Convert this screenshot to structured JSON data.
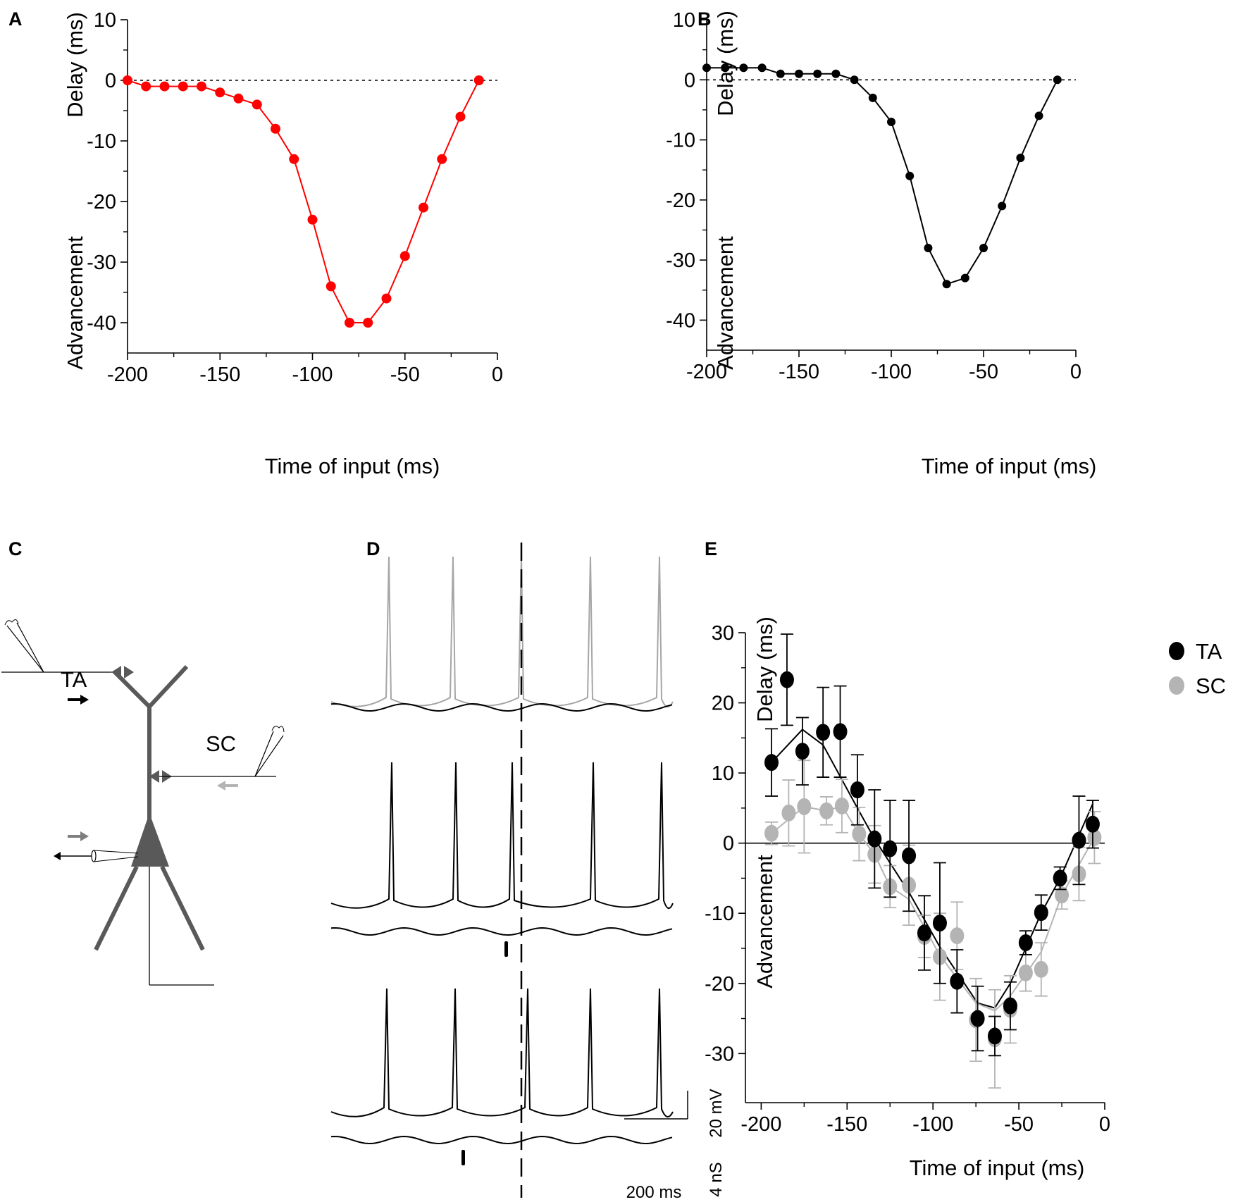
{
  "panel_labels": {
    "a": "A",
    "b": "B",
    "c": "C",
    "d": "D",
    "e": "E"
  },
  "diagram": {
    "ta_label": "TA",
    "sc_label": "SC",
    "colors": {
      "ta_arrow": "#000000",
      "sc_arrow": "#b4b4b4",
      "neuron": "#595959"
    }
  },
  "traces": {
    "scale_voltage": "20 mV",
    "scale_conductance": "4 nS",
    "scale_time": "200 ms",
    "colors": {
      "control": "#a6a6a6",
      "stimulated": "#000000"
    }
  },
  "chart_data": [
    {
      "id": "A",
      "type": "line",
      "title": "",
      "xlabel": "Time of input (ms)",
      "ylabel_top": "Delay (ms)",
      "ylabel_bottom": "Advancement",
      "xlim": [
        -200,
        0
      ],
      "ylim": [
        -45,
        10
      ],
      "xticks": [
        -200,
        -150,
        -100,
        -50,
        0
      ],
      "yticks": [
        10,
        0,
        -10,
        -20,
        -30,
        -40
      ],
      "xtick_labels": [
        "-200",
        "-150",
        "-100",
        "-50",
        "0"
      ],
      "ytick_labels": [
        "10",
        "0",
        "-10",
        "-20",
        "-30",
        "-40"
      ],
      "reference_line": 0,
      "series": [
        {
          "name": "Delay",
          "color": "#ff0000",
          "x": [
            -200,
            -190,
            -180,
            -170,
            -160,
            -150,
            -140,
            -130,
            -120,
            -110,
            -100,
            -90,
            -80,
            -70,
            -60,
            -50,
            -40,
            -30,
            -20,
            -10
          ],
          "y": [
            0,
            -1,
            -1,
            -1,
            -1,
            -2,
            -3,
            -4,
            -8,
            -13,
            -23,
            -34,
            -40,
            -40,
            -36,
            -29,
            -21,
            -13,
            -6,
            0
          ]
        }
      ]
    },
    {
      "id": "B",
      "type": "line",
      "title": "",
      "xlabel": "Time of input (ms)",
      "ylabel_top": "Delay (ms)",
      "ylabel_bottom": "Advancement",
      "xlim": [
        -200,
        0
      ],
      "ylim": [
        -45,
        10
      ],
      "xticks": [
        -200,
        -150,
        -100,
        -50,
        0
      ],
      "yticks": [
        10,
        0,
        -10,
        -20,
        -30,
        -40
      ],
      "xtick_labels": [
        "-200",
        "-150",
        "-100",
        "-50",
        "0"
      ],
      "ytick_labels": [
        "10",
        "0",
        "-10",
        "-20",
        "-30",
        "-40"
      ],
      "reference_line": 0,
      "series": [
        {
          "name": "Delay",
          "color": "#000000",
          "x": [
            -200,
            -190,
            -180,
            -170,
            -160,
            -150,
            -140,
            -130,
            -120,
            -110,
            -100,
            -90,
            -80,
            -70,
            -60,
            -50,
            -40,
            -30,
            -20,
            -10
          ],
          "y": [
            2,
            2,
            2,
            2,
            1,
            1,
            1,
            1,
            0,
            -3,
            -7,
            -16,
            -28,
            -34,
            -33,
            -28,
            -21,
            -13,
            -6,
            0
          ]
        }
      ]
    },
    {
      "id": "E",
      "type": "scatter",
      "title": "",
      "xlabel": "Time of input (ms)",
      "ylabel_top": "Delay (ms)",
      "ylabel_bottom": "Advancement",
      "xlim": [
        -210,
        0
      ],
      "ylim": [
        -37,
        30
      ],
      "xticks": [
        -200,
        -150,
        -100,
        -50,
        0
      ],
      "yticks": [
        30,
        20,
        10,
        0,
        -10,
        -20,
        -30
      ],
      "xtick_labels": [
        "-200",
        "-150",
        "-100",
        "-50",
        "0"
      ],
      "ytick_labels": [
        "30",
        "20",
        "10",
        "0",
        "-10",
        "-20",
        "-30"
      ],
      "reference_line": 0,
      "legend": "top-right",
      "series": [
        {
          "name": "TA",
          "color": "#000000",
          "x": [
            -194,
            -185,
            -176,
            -164,
            -154,
            -144,
            -134,
            -125,
            -114,
            -105,
            -96,
            -86,
            -74,
            -64,
            -55,
            -46,
            -37,
            -26,
            -15,
            -7
          ],
          "y": [
            11.5,
            23.3,
            13.1,
            15.8,
            15.9,
            7.6,
            0.6,
            -0.8,
            -1.8,
            -12.8,
            -11.4,
            -19.7,
            -25.0,
            -27.5,
            -23.2,
            -14.2,
            -9.9,
            -5.0,
            0.4,
            2.7
          ],
          "err": [
            4.8,
            6.5,
            4.8,
            6.4,
            6.5,
            5.0,
            7.0,
            6.9,
            7.9,
            5.3,
            8.6,
            4.5,
            4.6,
            2.8,
            3.4,
            1.7,
            2.5,
            1.6,
            6.3,
            3.4
          ],
          "fit_x": [
            -194,
            -176,
            -164,
            -144,
            -134,
            -114,
            -96,
            -74,
            -64,
            -55,
            -37,
            -26,
            -7
          ],
          "fit_y": [
            11.5,
            16.2,
            14.0,
            5.0,
            0.6,
            -7.0,
            -14.8,
            -22.8,
            -23.5,
            -20.0,
            -10.0,
            -5.0,
            5.6
          ]
        },
        {
          "name": "SC",
          "color": "#b4b4b4",
          "x": [
            -194,
            -184,
            -175,
            -162,
            -153,
            -143,
            -134,
            -125,
            -114,
            -105,
            -96,
            -86,
            -75,
            -64,
            -55,
            -46,
            -37,
            -25,
            -15,
            -6
          ],
          "y": [
            1.4,
            4.3,
            5.2,
            4.6,
            5.3,
            1.3,
            -1.6,
            -6.2,
            -6.0,
            -13.3,
            -16.2,
            -13.2,
            -25.2,
            -27.9,
            -23.7,
            -18.5,
            -18.0,
            -7.4,
            -4.4,
            0.8
          ],
          "err": [
            1.6,
            4.7,
            6.6,
            2.0,
            3.8,
            3.8,
            4.1,
            3.0,
            5.7,
            3.0,
            6.2,
            4.8,
            5.9,
            7.0,
            4.8,
            2.6,
            3.8,
            2.0,
            3.8,
            3.7
          ],
          "fit_x": [
            -194,
            -175,
            -162,
            -153,
            -143,
            -134,
            -125,
            -114,
            -96,
            -75,
            -64,
            -55,
            -37,
            -25,
            -6
          ],
          "fit_y": [
            1.4,
            5.2,
            4.6,
            5.3,
            1.3,
            -1.6,
            -6.2,
            -8.0,
            -16.0,
            -22.8,
            -23.9,
            -21.8,
            -15.5,
            -7.4,
            0.8
          ]
        }
      ]
    }
  ]
}
